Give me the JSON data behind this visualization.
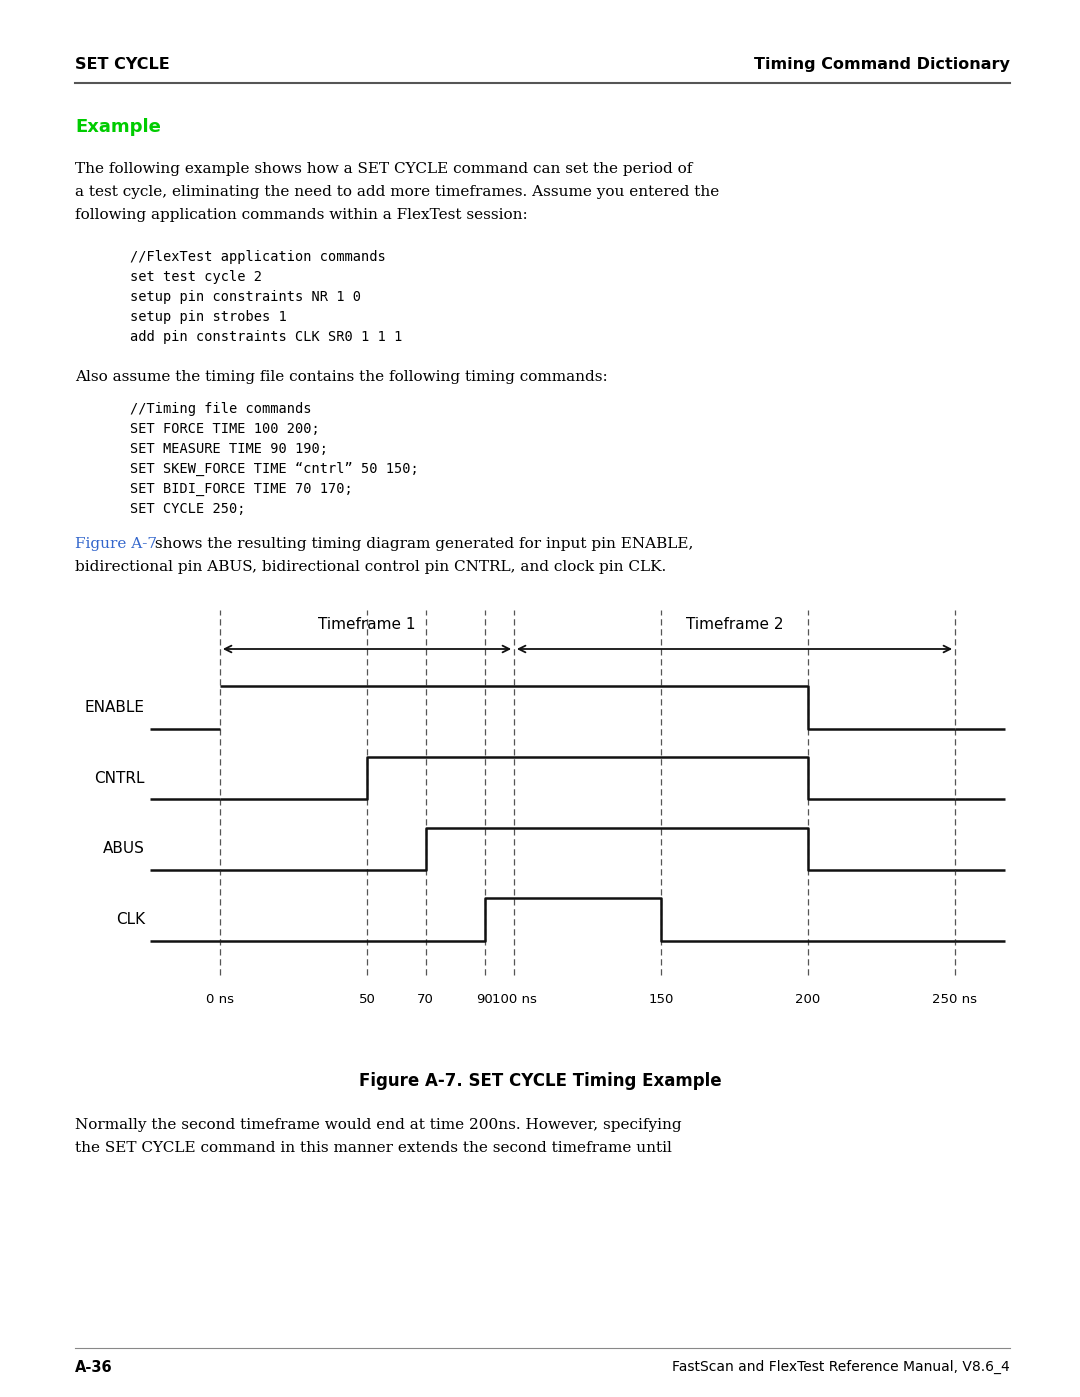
{
  "header_left": "SET CYCLE",
  "header_right": "Timing Command Dictionary",
  "section_title": "Example",
  "section_title_color": "#00cc00",
  "para1_lines": [
    "The following example shows how a SET CYCLE command can set the period of",
    "a test cycle, eliminating the need to add more timeframes. Assume you entered the",
    "following application commands within a FlexTest session:"
  ],
  "code1_lines": [
    "//FlexTest application commands",
    "set test cycle 2",
    "setup pin constraints NR 1 0",
    "setup pin strobes 1",
    "add pin constraints CLK SR0 1 1 1"
  ],
  "para2": "Also assume the timing file contains the following timing commands:",
  "code2_lines": [
    "//Timing file commands",
    "SET FORCE TIME 100 200;",
    "SET MEASURE TIME 90 190;",
    "SET SKEW_FORCE TIME “cntrl” 50 150;",
    "SET BIDI_FORCE TIME 70 170;",
    "SET CYCLE 250;"
  ],
  "para3_prefix": "Figure A-7",
  "para3_suffix_lines": [
    " shows the resulting timing diagram generated for input pin ENABLE,",
    "bidirectional pin ABUS, bidirectional control pin CNTRL, and clock pin CLK."
  ],
  "para3_link_color": "#3366cc",
  "diagram_signals": [
    "ENABLE",
    "CNTRL",
    "ABUS",
    "CLK"
  ],
  "timeframe1_label": "Timeframe 1",
  "timeframe2_label": "Timeframe 2",
  "time_ticks": [
    0,
    50,
    70,
    90,
    100,
    150,
    200,
    250
  ],
  "time_tick_labels": [
    "0 ns",
    "50",
    "70",
    "90",
    "100 ns",
    "150",
    "200",
    "250 ns"
  ],
  "dashed_times": [
    0,
    50,
    70,
    90,
    100,
    150,
    200,
    250
  ],
  "figure_caption": "Figure A-7. SET CYCLE Timing Example",
  "para4_lines": [
    "Normally the second timeframe would end at time 200ns. However, specifying",
    "the SET CYCLE command in this manner extends the second timeframe until"
  ],
  "footer_left": "A-36",
  "footer_right": "FastScan and FlexTest Reference Manual, V8.6_4",
  "bg_color": "#ffffff",
  "text_color": "#000000"
}
